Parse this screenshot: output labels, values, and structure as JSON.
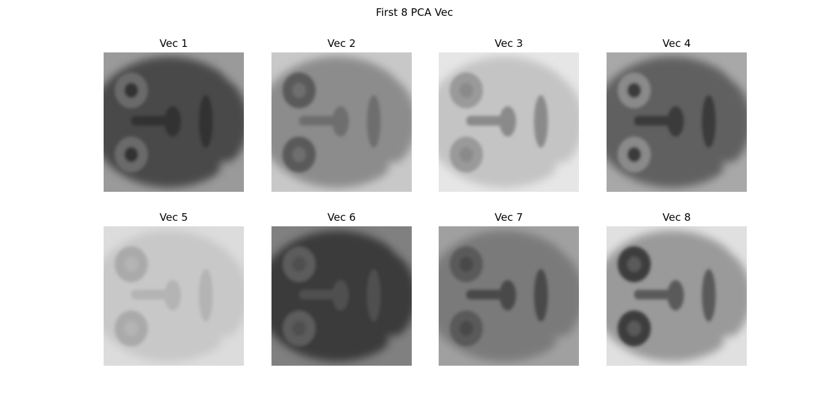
{
  "figure": {
    "title": "First 8 PCA Vec"
  },
  "panels": [
    {
      "title": "Vec 1",
      "tone": {
        "base": "#4a4a4a",
        "eye": "#6a6a6a",
        "feature": "#303030",
        "edge": "#9a9a9a"
      }
    },
    {
      "title": "Vec 2",
      "tone": {
        "base": "#8c8c8c",
        "eye": "#5a5a5a",
        "feature": "#6e6e6e",
        "edge": "#c8c8c8"
      }
    },
    {
      "title": "Vec 3",
      "tone": {
        "base": "#c4c4c4",
        "eye": "#9a9a9a",
        "feature": "#8a8a8a",
        "edge": "#e6e6e6"
      }
    },
    {
      "title": "Vec 4",
      "tone": {
        "base": "#606060",
        "eye": "#8a8a8a",
        "feature": "#3a3a3a",
        "edge": "#a8a8a8"
      }
    },
    {
      "title": "Vec 5",
      "tone": {
        "base": "#c8c8c8",
        "eye": "#aaaaaa",
        "feature": "#b4b4b4",
        "edge": "#dcdcdc"
      }
    },
    {
      "title": "Vec 6",
      "tone": {
        "base": "#3a3a3a",
        "eye": "#5c5c5c",
        "feature": "#505050",
        "edge": "#808080"
      }
    },
    {
      "title": "Vec 7",
      "tone": {
        "base": "#7a7a7a",
        "eye": "#5a5a5a",
        "feature": "#4a4a4a",
        "edge": "#a0a0a0"
      }
    },
    {
      "title": "Vec 8",
      "tone": {
        "base": "#9a9a9a",
        "eye": "#3c3c3c",
        "feature": "#5a5a5a",
        "edge": "#e0e0e0"
      }
    }
  ]
}
